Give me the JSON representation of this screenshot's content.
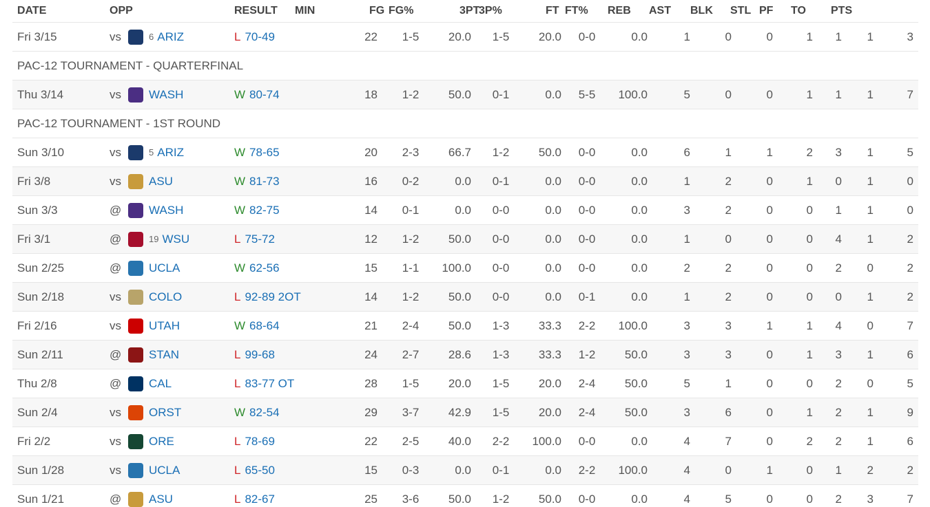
{
  "columns": [
    "DATE",
    "OPP",
    "RESULT",
    "MIN",
    "FG",
    "FG%",
    "3PT",
    "3P%",
    "FT",
    "FT%",
    "REB",
    "AST",
    "BLK",
    "STL",
    "PF",
    "TO",
    "PTS"
  ],
  "rows": [
    {
      "date": "Fri 3/15",
      "location": "vs",
      "logo_color": "#1b3a6b",
      "rank": 6,
      "team": "ARIZ",
      "outcome": "L",
      "score": "70-49",
      "stats": [
        22,
        "1-5",
        "20.0",
        "1-5",
        "20.0",
        "0-0",
        "0.0",
        1,
        0,
        0,
        1,
        1,
        1,
        3
      ]
    },
    {
      "section": "PAC-12 TOURNAMENT - QUARTERFINAL"
    },
    {
      "date": "Thu 3/14",
      "location": "vs",
      "logo_color": "#4b2e83",
      "team": "WASH",
      "outcome": "W",
      "score": "80-74",
      "stats": [
        18,
        "1-2",
        "50.0",
        "0-1",
        "0.0",
        "5-5",
        "100.0",
        5,
        0,
        0,
        1,
        1,
        1,
        7
      ]
    },
    {
      "section": "PAC-12 TOURNAMENT - 1ST ROUND"
    },
    {
      "date": "Sun 3/10",
      "location": "vs",
      "logo_color": "#1b3a6b",
      "rank": 5,
      "team": "ARIZ",
      "outcome": "W",
      "score": "78-65",
      "stats": [
        20,
        "2-3",
        "66.7",
        "1-2",
        "50.0",
        "0-0",
        "0.0",
        6,
        1,
        1,
        2,
        3,
        1,
        5
      ]
    },
    {
      "date": "Fri 3/8",
      "location": "vs",
      "logo_color": "#c89b3c",
      "team": "ASU",
      "outcome": "W",
      "score": "81-73",
      "stats": [
        16,
        "0-2",
        "0.0",
        "0-1",
        "0.0",
        "0-0",
        "0.0",
        1,
        2,
        0,
        1,
        0,
        1,
        0
      ]
    },
    {
      "date": "Sun 3/3",
      "location": "@",
      "logo_color": "#4b2e83",
      "team": "WASH",
      "outcome": "W",
      "score": "82-75",
      "stats": [
        14,
        "0-1",
        "0.0",
        "0-0",
        "0.0",
        "0-0",
        "0.0",
        3,
        2,
        0,
        0,
        1,
        1,
        0
      ]
    },
    {
      "date": "Fri 3/1",
      "location": "@",
      "logo_color": "#a60f2d",
      "rank": 19,
      "team": "WSU",
      "outcome": "L",
      "score": "75-72",
      "stats": [
        12,
        "1-2",
        "50.0",
        "0-0",
        "0.0",
        "0-0",
        "0.0",
        1,
        0,
        0,
        0,
        4,
        1,
        2
      ]
    },
    {
      "date": "Sun 2/25",
      "location": "@",
      "logo_color": "#2774ae",
      "team": "UCLA",
      "outcome": "W",
      "score": "62-56",
      "stats": [
        15,
        "1-1",
        "100.0",
        "0-0",
        "0.0",
        "0-0",
        "0.0",
        2,
        2,
        0,
        0,
        2,
        0,
        2
      ]
    },
    {
      "date": "Sun 2/18",
      "location": "vs",
      "logo_color": "#b8a46a",
      "team": "COLO",
      "outcome": "L",
      "score": "92-89 2OT",
      "stats": [
        14,
        "1-2",
        "50.0",
        "0-0",
        "0.0",
        "0-1",
        "0.0",
        1,
        2,
        0,
        0,
        0,
        1,
        2
      ]
    },
    {
      "date": "Fri 2/16",
      "location": "vs",
      "logo_color": "#cc0000",
      "team": "UTAH",
      "outcome": "W",
      "score": "68-64",
      "stats": [
        21,
        "2-4",
        "50.0",
        "1-3",
        "33.3",
        "2-2",
        "100.0",
        3,
        3,
        1,
        1,
        4,
        0,
        7
      ]
    },
    {
      "date": "Sun 2/11",
      "location": "@",
      "logo_color": "#8c1515",
      "team": "STAN",
      "outcome": "L",
      "score": "99-68",
      "stats": [
        24,
        "2-7",
        "28.6",
        "1-3",
        "33.3",
        "1-2",
        "50.0",
        3,
        3,
        0,
        1,
        3,
        1,
        6
      ]
    },
    {
      "date": "Thu 2/8",
      "location": "@",
      "logo_color": "#003262",
      "team": "CAL",
      "outcome": "L",
      "score": "83-77 OT",
      "stats": [
        28,
        "1-5",
        "20.0",
        "1-5",
        "20.0",
        "2-4",
        "50.0",
        5,
        1,
        0,
        0,
        2,
        0,
        5
      ]
    },
    {
      "date": "Sun 2/4",
      "location": "vs",
      "logo_color": "#dc4405",
      "team": "ORST",
      "outcome": "W",
      "score": "82-54",
      "stats": [
        29,
        "3-7",
        "42.9",
        "1-5",
        "20.0",
        "2-4",
        "50.0",
        3,
        6,
        0,
        1,
        2,
        1,
        9
      ]
    },
    {
      "date": "Fri 2/2",
      "location": "vs",
      "logo_color": "#154733",
      "team": "ORE",
      "outcome": "L",
      "score": "78-69",
      "stats": [
        22,
        "2-5",
        "40.0",
        "2-2",
        "100.0",
        "0-0",
        "0.0",
        4,
        7,
        0,
        2,
        2,
        1,
        6
      ]
    },
    {
      "date": "Sun 1/28",
      "location": "vs",
      "logo_color": "#2774ae",
      "team": "UCLA",
      "outcome": "L",
      "score": "65-50",
      "stats": [
        15,
        "0-3",
        "0.0",
        "0-1",
        "0.0",
        "2-2",
        "100.0",
        4,
        0,
        1,
        0,
        1,
        2,
        2
      ]
    },
    {
      "date": "Sun 1/21",
      "location": "@",
      "logo_color": "#c89b3c",
      "team": "ASU",
      "outcome": "L",
      "score": "82-67",
      "stats": [
        25,
        "3-6",
        "50.0",
        "1-2",
        "50.0",
        "0-0",
        "0.0",
        4,
        5,
        0,
        0,
        2,
        3,
        7
      ]
    }
  ]
}
